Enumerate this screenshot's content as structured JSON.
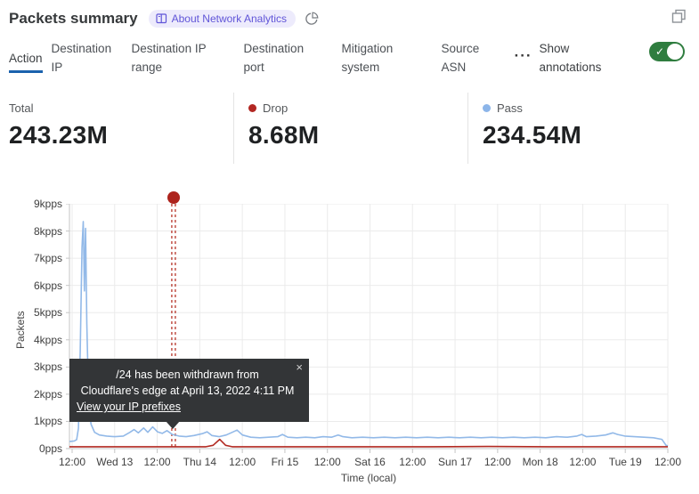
{
  "header": {
    "title": "Packets summary",
    "badge_label": "About Network Analytics"
  },
  "tabs": [
    {
      "label": "Action",
      "active": true
    },
    {
      "label": "Destination IP",
      "active": false
    },
    {
      "label": "Destination IP range",
      "active": false
    },
    {
      "label": "Destination port",
      "active": false
    },
    {
      "label": "Mitigation system",
      "active": false
    },
    {
      "label": "Source ASN",
      "active": false
    }
  ],
  "tabs_more": "···",
  "annotations_toggle": {
    "label": "Show annotations",
    "state": "on"
  },
  "stats": [
    {
      "label": "Total",
      "value": "243.23M",
      "dot_color": null
    },
    {
      "label": "Drop",
      "value": "8.68M",
      "dot_color": "#b22722"
    },
    {
      "label": "Pass",
      "value": "234.54M",
      "dot_color": "#8cb5e9"
    }
  ],
  "tooltip": {
    "message_line1": "/24 has been withdrawn from",
    "message_line2": "Cloudflare's edge at April 13, 2022 4:11 PM",
    "link": "View your IP prefixes",
    "close": "×"
  },
  "theme": {
    "accent_blue": "#1b62ad",
    "toggle_green": "#2f7d3f",
    "badge_bg": "#edebfc",
    "badge_text": "#6055d8",
    "grid": "#ebebeb",
    "axis": "#c6c6c6",
    "tooltip_bg": "#333537"
  },
  "chart_data": {
    "type": "line",
    "title": "Packets summary",
    "xlabel": "Time (local)",
    "ylabel": "Packets",
    "ylim_kpps": 9,
    "grid": true,
    "y_ticks": [
      "9kpps",
      "8kpps",
      "7kpps",
      "6kpps",
      "5kpps",
      "4kpps",
      "3kpps",
      "2kpps",
      "1kpps",
      "0pps"
    ],
    "x_ticks": [
      "12:00",
      "Wed 13",
      "12:00",
      "Thu 14",
      "12:00",
      "Fri 15",
      "12:00",
      "Sat 16",
      "12:00",
      "Sun 17",
      "12:00",
      "Mon 18",
      "12:00",
      "Tue 19",
      "12:00"
    ],
    "annotation": {
      "x_frac": 0.174,
      "color": "#b02418",
      "label": "/24 has been withdrawn from Cloudflare's edge at April 13, 2022 4:11 PM"
    },
    "series": [
      {
        "name": "Pass",
        "color": "#92b9e8",
        "points": [
          [
            0.0,
            0.26
          ],
          [
            0.008,
            0.28
          ],
          [
            0.012,
            0.33
          ],
          [
            0.015,
            0.75
          ],
          [
            0.018,
            3.6
          ],
          [
            0.021,
            7.4
          ],
          [
            0.023,
            8.35
          ],
          [
            0.025,
            5.8
          ],
          [
            0.027,
            8.1
          ],
          [
            0.029,
            4.6
          ],
          [
            0.032,
            1.8
          ],
          [
            0.036,
            0.9
          ],
          [
            0.042,
            0.6
          ],
          [
            0.05,
            0.5
          ],
          [
            0.062,
            0.46
          ],
          [
            0.076,
            0.44
          ],
          [
            0.09,
            0.46
          ],
          [
            0.101,
            0.6
          ],
          [
            0.108,
            0.7
          ],
          [
            0.115,
            0.58
          ],
          [
            0.124,
            0.76
          ],
          [
            0.131,
            0.6
          ],
          [
            0.139,
            0.8
          ],
          [
            0.147,
            0.62
          ],
          [
            0.155,
            0.56
          ],
          [
            0.163,
            0.66
          ],
          [
            0.172,
            0.52
          ],
          [
            0.183,
            0.46
          ],
          [
            0.195,
            0.44
          ],
          [
            0.208,
            0.48
          ],
          [
            0.222,
            0.55
          ],
          [
            0.23,
            0.62
          ],
          [
            0.238,
            0.48
          ],
          [
            0.25,
            0.44
          ],
          [
            0.262,
            0.5
          ],
          [
            0.272,
            0.6
          ],
          [
            0.28,
            0.68
          ],
          [
            0.289,
            0.5
          ],
          [
            0.303,
            0.42
          ],
          [
            0.318,
            0.4
          ],
          [
            0.333,
            0.42
          ],
          [
            0.348,
            0.44
          ],
          [
            0.356,
            0.52
          ],
          [
            0.365,
            0.42
          ],
          [
            0.38,
            0.4
          ],
          [
            0.395,
            0.42
          ],
          [
            0.41,
            0.4
          ],
          [
            0.424,
            0.44
          ],
          [
            0.438,
            0.42
          ],
          [
            0.449,
            0.5
          ],
          [
            0.457,
            0.44
          ],
          [
            0.472,
            0.4
          ],
          [
            0.49,
            0.42
          ],
          [
            0.508,
            0.4
          ],
          [
            0.526,
            0.42
          ],
          [
            0.544,
            0.4
          ],
          [
            0.562,
            0.42
          ],
          [
            0.58,
            0.4
          ],
          [
            0.598,
            0.42
          ],
          [
            0.616,
            0.4
          ],
          [
            0.634,
            0.42
          ],
          [
            0.652,
            0.4
          ],
          [
            0.67,
            0.42
          ],
          [
            0.688,
            0.4
          ],
          [
            0.706,
            0.42
          ],
          [
            0.724,
            0.4
          ],
          [
            0.742,
            0.42
          ],
          [
            0.76,
            0.4
          ],
          [
            0.778,
            0.42
          ],
          [
            0.796,
            0.4
          ],
          [
            0.814,
            0.44
          ],
          [
            0.832,
            0.42
          ],
          [
            0.848,
            0.46
          ],
          [
            0.856,
            0.52
          ],
          [
            0.864,
            0.44
          ],
          [
            0.88,
            0.46
          ],
          [
            0.896,
            0.5
          ],
          [
            0.908,
            0.58
          ],
          [
            0.916,
            0.52
          ],
          [
            0.928,
            0.46
          ],
          [
            0.944,
            0.44
          ],
          [
            0.96,
            0.42
          ],
          [
            0.976,
            0.4
          ],
          [
            0.99,
            0.34
          ],
          [
            0.997,
            0.12
          ],
          [
            1.0,
            0.1
          ]
        ]
      },
      {
        "name": "Drop",
        "color": "#b22a22",
        "points": [
          [
            0.0,
            0.07
          ],
          [
            0.1,
            0.07
          ],
          [
            0.2,
            0.07
          ],
          [
            0.228,
            0.07
          ],
          [
            0.24,
            0.12
          ],
          [
            0.251,
            0.34
          ],
          [
            0.261,
            0.12
          ],
          [
            0.272,
            0.07
          ],
          [
            0.4,
            0.07
          ],
          [
            0.5,
            0.07
          ],
          [
            0.6,
            0.07
          ],
          [
            0.7,
            0.08
          ],
          [
            0.8,
            0.07
          ],
          [
            0.9,
            0.07
          ],
          [
            1.0,
            0.07
          ]
        ]
      }
    ]
  }
}
